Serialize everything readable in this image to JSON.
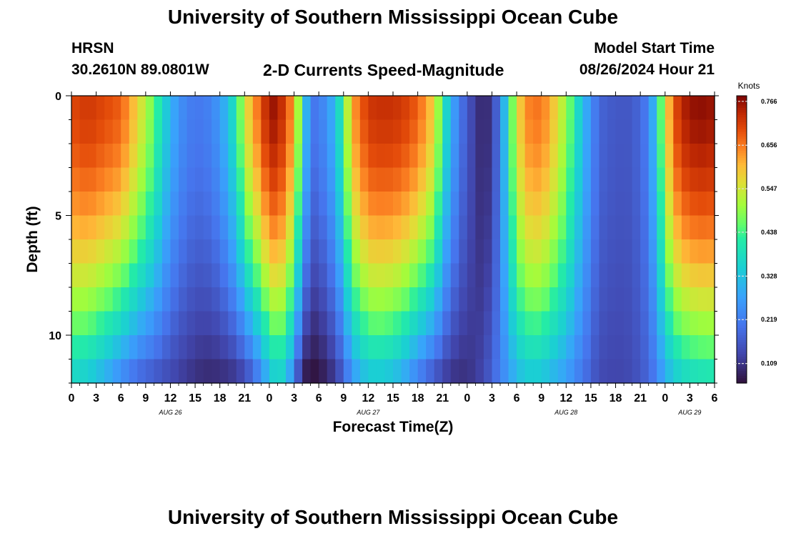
{
  "page": {
    "title": "University of Southern Mississippi Ocean Cube",
    "title_bottom": "University of Southern Mississippi Ocean Cube",
    "station": "HRSN",
    "coords": "30.2610N  89.0801W",
    "subtitle": "2-D Currents Speed-Magnitude",
    "model_start_label": "Model Start Time",
    "model_start_value": "08/26/2024 Hour 21"
  },
  "chart_data": {
    "type": "heatmap",
    "title": "2-D Currents Speed-Magnitude",
    "xlabel": "Forecast Time(Z)",
    "ylabel": "Depth (ft)",
    "x_tick_labels": [
      "0",
      "3",
      "6",
      "9",
      "12",
      "15",
      "18",
      "21",
      "0",
      "3",
      "6",
      "9",
      "12",
      "15",
      "18",
      "21",
      "0",
      "3",
      "6",
      "9",
      "12",
      "15",
      "18",
      "21",
      "0",
      "3",
      "6"
    ],
    "x_range_hours": [
      0,
      78
    ],
    "date_labels": [
      {
        "text": "AUG 26",
        "hour": 12
      },
      {
        "text": "AUG 27",
        "hour": 36
      },
      {
        "text": "AUG 28",
        "hour": 60
      },
      {
        "text": "AUG 29",
        "hour": 75
      }
    ],
    "y_ticks": [
      0,
      5,
      10
    ],
    "y_tick_labels": [
      "0",
      "5",
      "10"
    ],
    "ylim": [
      0,
      12
    ],
    "depth_levels": 12,
    "colorbar": {
      "label": "Knots",
      "min": 0.06,
      "max": 0.78,
      "ticks": [
        "0.766",
        "0.656",
        "0.547",
        "0.438",
        "0.328",
        "0.219",
        "0.109"
      ],
      "tick_values": [
        0.766,
        0.656,
        0.547,
        0.438,
        0.328,
        0.219,
        0.109
      ]
    },
    "surface_profile": {
      "hours": [
        0,
        2,
        4,
        6,
        8,
        10,
        12,
        14,
        16,
        18,
        20,
        21,
        22,
        23,
        24,
        25,
        26,
        27,
        28,
        29,
        30,
        31,
        32,
        33,
        34,
        36,
        38,
        40,
        42,
        44,
        45,
        46,
        47,
        48,
        49,
        50,
        51,
        52,
        53,
        54,
        55,
        56,
        57,
        58,
        60,
        62,
        64,
        66,
        68,
        70,
        71,
        72,
        73,
        74,
        75,
        76,
        78
      ],
      "values": [
        0.7,
        0.72,
        0.7,
        0.68,
        0.58,
        0.46,
        0.3,
        0.22,
        0.21,
        0.26,
        0.4,
        0.55,
        0.62,
        0.69,
        0.76,
        0.76,
        0.7,
        0.62,
        0.4,
        0.2,
        0.22,
        0.25,
        0.32,
        0.44,
        0.62,
        0.72,
        0.73,
        0.72,
        0.68,
        0.58,
        0.42,
        0.3,
        0.22,
        0.16,
        0.12,
        0.08,
        0.12,
        0.22,
        0.4,
        0.55,
        0.64,
        0.66,
        0.66,
        0.62,
        0.5,
        0.32,
        0.18,
        0.16,
        0.16,
        0.22,
        0.36,
        0.55,
        0.68,
        0.74,
        0.76,
        0.77,
        0.76
      ]
    },
    "bottom_profile": {
      "hours": [
        0,
        2,
        4,
        6,
        8,
        10,
        12,
        14,
        16,
        18,
        20,
        21,
        22,
        23,
        24,
        25,
        26,
        27,
        28,
        29,
        30,
        31,
        32,
        33,
        34,
        36,
        38,
        40,
        42,
        44,
        45,
        46,
        47,
        48,
        49,
        50,
        51,
        52,
        53,
        54,
        55,
        56,
        57,
        58,
        60,
        62,
        64,
        66,
        68,
        70,
        71,
        72,
        73,
        74,
        75,
        76,
        78
      ],
      "values": [
        0.35,
        0.33,
        0.28,
        0.22,
        0.17,
        0.15,
        0.13,
        0.11,
        0.09,
        0.09,
        0.1,
        0.12,
        0.16,
        0.22,
        0.3,
        0.35,
        0.32,
        0.2,
        0.07,
        0.05,
        0.06,
        0.08,
        0.11,
        0.16,
        0.24,
        0.32,
        0.32,
        0.28,
        0.2,
        0.14,
        0.12,
        0.1,
        0.1,
        0.1,
        0.12,
        0.14,
        0.18,
        0.22,
        0.26,
        0.3,
        0.32,
        0.33,
        0.32,
        0.3,
        0.26,
        0.2,
        0.14,
        0.13,
        0.14,
        0.18,
        0.22,
        0.28,
        0.32,
        0.35,
        0.36,
        0.37,
        0.38
      ]
    }
  }
}
